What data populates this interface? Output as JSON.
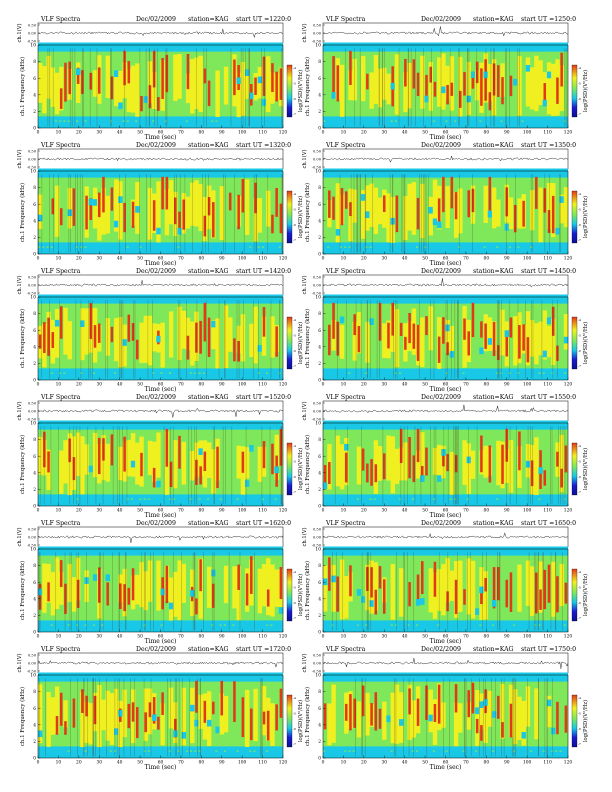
{
  "page": {
    "header_left": "VLF Spectra",
    "date": "Dec/02/2009",
    "station": "station=KAG",
    "start_prefix": "start  UT =",
    "colorbar_label": "log(PSD)(V²/Hz)"
  },
  "colors": {
    "spectrogram": [
      "#1a1ad0",
      "#19c8e6",
      "#7fe85a",
      "#f0f020",
      "#e23a16"
    ],
    "background": "#ffffff",
    "ink": "#000000"
  },
  "chart_data": [
    {
      "type": "heatmap",
      "panel": "1220",
      "start_ut": "1220:0",
      "ts_ylabel": "ch.1(V)",
      "ts_ticks": [
        "0.50",
        "0.00",
        "-0.50"
      ],
      "ylabel": "ch.1 Frequency (kHz)",
      "xlabel": "Time (sec)",
      "xlim": [
        0,
        120
      ],
      "ylim": [
        0,
        10
      ],
      "xticks": [
        "0",
        "10",
        "20",
        "30",
        "40",
        "50",
        "60",
        "70",
        "80",
        "90",
        "100",
        "110",
        "120"
      ],
      "yticks": [
        "0",
        "2",
        "4",
        "6",
        "8",
        "10"
      ],
      "colorbar_ticks": [
        "-4",
        "-5",
        "-6",
        "-7"
      ]
    },
    {
      "type": "heatmap",
      "panel": "1250",
      "start_ut": "1250:0",
      "ts_ylabel": "ch.1(V)",
      "ts_ticks": [
        "0.50",
        "0.00",
        "-0.50"
      ],
      "ylabel": "ch.1 Frequency (kHz)",
      "xlabel": "Time (sec)",
      "xlim": [
        0,
        120
      ],
      "ylim": [
        0,
        10
      ],
      "xticks": [
        "0",
        "10",
        "20",
        "30",
        "40",
        "50",
        "60",
        "70",
        "80",
        "90",
        "100",
        "110",
        "120"
      ],
      "yticks": [
        "0",
        "2",
        "4",
        "6",
        "8",
        "10"
      ],
      "colorbar_ticks": [
        "-4",
        "-5",
        "-6",
        "-7"
      ]
    },
    {
      "type": "heatmap",
      "panel": "1320",
      "start_ut": "1320:0",
      "ts_ylabel": "ch.1(V)",
      "ts_ticks": [
        "0.50",
        "0.00",
        "-0.50"
      ],
      "ylabel": "ch.1 Frequency (kHz)",
      "xlabel": "Time (sec)",
      "xlim": [
        0,
        120
      ],
      "ylim": [
        0,
        10
      ],
      "xticks": [
        "0",
        "10",
        "20",
        "30",
        "40",
        "50",
        "60",
        "70",
        "80",
        "90",
        "100",
        "110",
        "120"
      ],
      "yticks": [
        "0",
        "2",
        "4",
        "6",
        "8",
        "10"
      ],
      "colorbar_ticks": [
        "-4",
        "-5",
        "-6",
        "-7"
      ]
    },
    {
      "type": "heatmap",
      "panel": "1350",
      "start_ut": "1350:0",
      "ts_ylabel": "ch.1(V)",
      "ts_ticks": [
        "0.50",
        "0.00",
        "-0.50"
      ],
      "ylabel": "ch.1 Frequency (kHz)",
      "xlabel": "Time (sec)",
      "xlim": [
        0,
        120
      ],
      "ylim": [
        0,
        10
      ],
      "xticks": [
        "0",
        "10",
        "20",
        "30",
        "40",
        "50",
        "60",
        "70",
        "80",
        "90",
        "100",
        "110",
        "120"
      ],
      "yticks": [
        "0",
        "2",
        "4",
        "6",
        "8",
        "10"
      ],
      "colorbar_ticks": [
        "-4",
        "-5",
        "-6",
        "-7"
      ]
    },
    {
      "type": "heatmap",
      "panel": "1420",
      "start_ut": "1420:0",
      "ts_ylabel": "ch.1(V)",
      "ts_ticks": [
        "0.50",
        "0.00",
        "-0.50"
      ],
      "ylabel": "ch.1 Frequency (kHz)",
      "xlabel": "Time (sec)",
      "xlim": [
        0,
        120
      ],
      "ylim": [
        0,
        10
      ],
      "xticks": [
        "0",
        "10",
        "20",
        "30",
        "40",
        "50",
        "60",
        "70",
        "80",
        "90",
        "100",
        "110",
        "120"
      ],
      "yticks": [
        "0",
        "2",
        "4",
        "6",
        "8",
        "10"
      ],
      "colorbar_ticks": [
        "-4",
        "-5",
        "-6",
        "-7"
      ]
    },
    {
      "type": "heatmap",
      "panel": "1450",
      "start_ut": "1450:0",
      "ts_ylabel": "ch.1(V)",
      "ts_ticks": [
        "0.50",
        "0.00",
        "-0.50"
      ],
      "ylabel": "ch.1 Frequency (kHz)",
      "xlabel": "Time (sec)",
      "xlim": [
        0,
        120
      ],
      "ylim": [
        0,
        10
      ],
      "xticks": [
        "0",
        "10",
        "20",
        "30",
        "40",
        "50",
        "60",
        "70",
        "80",
        "90",
        "100",
        "110",
        "120"
      ],
      "yticks": [
        "0",
        "2",
        "4",
        "6",
        "8",
        "10"
      ],
      "colorbar_ticks": [
        "-4",
        "-5",
        "-6",
        "-7"
      ]
    },
    {
      "type": "heatmap",
      "panel": "1520",
      "start_ut": "1520:0",
      "ts_ylabel": "ch.1(V)",
      "ts_ticks": [
        "0.50",
        "0.00",
        "-0.50"
      ],
      "ylabel": "ch.1 Frequency (kHz)",
      "xlabel": "Time (sec)",
      "xlim": [
        0,
        120
      ],
      "ylim": [
        0,
        10
      ],
      "xticks": [
        "0",
        "10",
        "20",
        "30",
        "40",
        "50",
        "60",
        "70",
        "80",
        "90",
        "100",
        "110",
        "120"
      ],
      "yticks": [
        "0",
        "2",
        "4",
        "6",
        "8",
        "10"
      ],
      "colorbar_ticks": [
        "-4",
        "-5",
        "-6",
        "-7"
      ]
    },
    {
      "type": "heatmap",
      "panel": "1550",
      "start_ut": "1550:0",
      "ts_ylabel": "ch.1(V)",
      "ts_ticks": [
        "0.50",
        "0.00",
        "-0.50"
      ],
      "ylabel": "ch.1 Frequency (kHz)",
      "xlabel": "Time (sec)",
      "xlim": [
        0,
        120
      ],
      "ylim": [
        0,
        10
      ],
      "xticks": [
        "0",
        "10",
        "20",
        "30",
        "40",
        "50",
        "60",
        "70",
        "80",
        "90",
        "100",
        "110",
        "120"
      ],
      "yticks": [
        "0",
        "2",
        "4",
        "6",
        "8",
        "10"
      ],
      "colorbar_ticks": [
        "-4",
        "-5",
        "-6",
        "-7"
      ]
    },
    {
      "type": "heatmap",
      "panel": "1620",
      "start_ut": "1620:0",
      "ts_ylabel": "ch.1(V)",
      "ts_ticks": [
        "0.50",
        "0.00",
        "-0.50"
      ],
      "ylabel": "ch.1 Frequency (kHz)",
      "xlabel": "Time (sec)",
      "xlim": [
        0,
        120
      ],
      "ylim": [
        0,
        10
      ],
      "xticks": [
        "0",
        "10",
        "20",
        "30",
        "40",
        "50",
        "60",
        "70",
        "80",
        "90",
        "100",
        "110",
        "120"
      ],
      "yticks": [
        "0",
        "2",
        "4",
        "6",
        "8",
        "10"
      ],
      "colorbar_ticks": [
        "-4",
        "-5",
        "-6",
        "-7"
      ]
    },
    {
      "type": "heatmap",
      "panel": "1650",
      "start_ut": "1650:0",
      "ts_ylabel": "ch.1(V)",
      "ts_ticks": [
        "0.50",
        "0.00",
        "-0.50"
      ],
      "ylabel": "ch.1 Frequency (kHz)",
      "xlabel": "Time (sec)",
      "xlim": [
        0,
        120
      ],
      "ylim": [
        0,
        10
      ],
      "xticks": [
        "0",
        "10",
        "20",
        "30",
        "40",
        "50",
        "60",
        "70",
        "80",
        "90",
        "100",
        "110",
        "120"
      ],
      "yticks": [
        "0",
        "2",
        "4",
        "6",
        "8",
        "10"
      ],
      "colorbar_ticks": [
        "-4",
        "-5",
        "-6",
        "-7"
      ]
    },
    {
      "type": "heatmap",
      "panel": "1720",
      "start_ut": "1720:0",
      "ts_ylabel": "ch.1(V)",
      "ts_ticks": [
        "0.50",
        "0.00",
        "-0.50"
      ],
      "ylabel": "ch.1 Frequency (kHz)",
      "xlabel": "Time (sec)",
      "xlim": [
        0,
        120
      ],
      "ylim": [
        0,
        10
      ],
      "xticks": [
        "0",
        "10",
        "20",
        "30",
        "40",
        "50",
        "60",
        "70",
        "80",
        "90",
        "100",
        "110",
        "120"
      ],
      "yticks": [
        "0",
        "2",
        "4",
        "6",
        "8",
        "10"
      ],
      "colorbar_ticks": [
        "-4",
        "-5",
        "-6",
        "-7"
      ]
    },
    {
      "type": "heatmap",
      "panel": "1750",
      "start_ut": "1750:0",
      "ts_ylabel": "ch.1(V)",
      "ts_ticks": [
        "0.50",
        "0.00",
        "-0.50"
      ],
      "ylabel": "ch.1 Frequency (kHz)",
      "xlabel": "Time (sec)",
      "xlim": [
        0,
        120
      ],
      "ylim": [
        0,
        10
      ],
      "xticks": [
        "0",
        "10",
        "20",
        "30",
        "40",
        "50",
        "60",
        "70",
        "80",
        "90",
        "100",
        "110",
        "120"
      ],
      "yticks": [
        "0",
        "2",
        "4",
        "6",
        "8",
        "10"
      ],
      "colorbar_ticks": [
        "-4",
        "-5",
        "-6",
        "-7"
      ]
    }
  ]
}
